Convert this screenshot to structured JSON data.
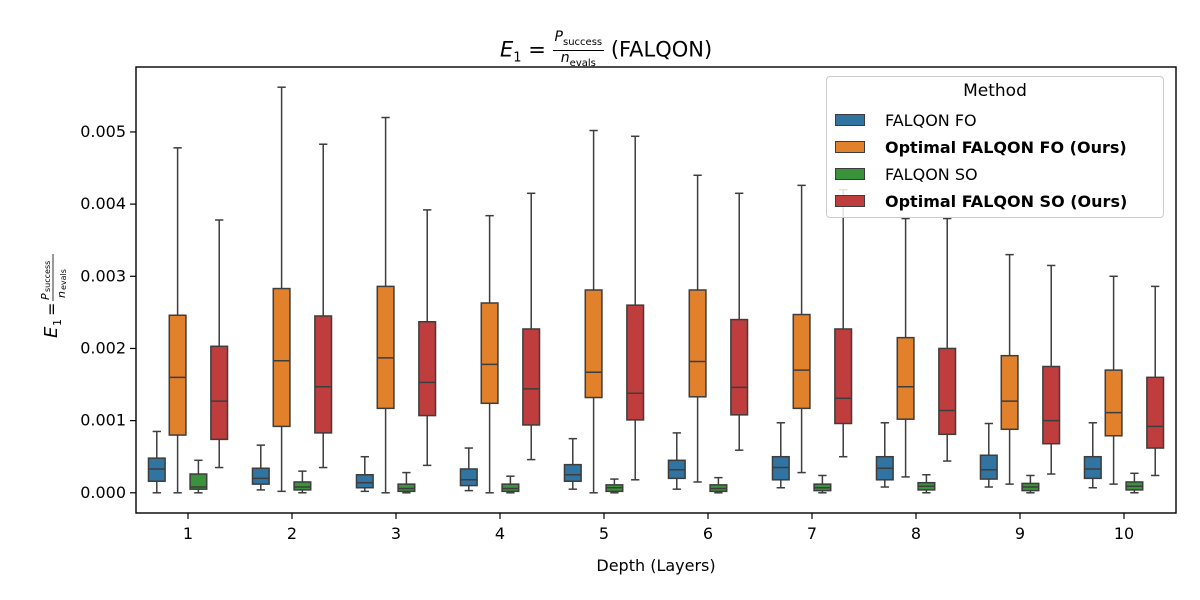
{
  "title": {
    "lhs": "E",
    "lhs_sub": "1",
    "eq": "=",
    "num_main": "P",
    "num_sub": "success",
    "den_main": "n",
    "den_sub": "evals",
    "suffix": "(FALQON)"
  },
  "ylabel": {
    "lhs": "E",
    "lhs_sub": "1",
    "eq": "=",
    "num_main": "P",
    "num_sub": "success",
    "den_main": "n",
    "den_sub": "evals"
  },
  "legend": {
    "title": "Method",
    "items": [
      {
        "label": "FALQON FO",
        "color": "#1f77b4",
        "bold": false
      },
      {
        "label": "Optimal FALQON FO (Ours)",
        "color": "#ff7f0e",
        "bold": true
      },
      {
        "label": "FALQON SO",
        "color": "#2ca02c",
        "bold": false
      },
      {
        "label": "Optimal FALQON SO (Ours)",
        "color": "#d62728",
        "bold": true
      }
    ]
  },
  "chart_data": {
    "type": "box",
    "xlabel": "Depth (Layers)",
    "categories": [
      "1",
      "2",
      "3",
      "4",
      "5",
      "6",
      "7",
      "8",
      "9",
      "10"
    ],
    "ylim": [
      -0.00028,
      0.0059
    ],
    "yticks": [
      0.0,
      0.001,
      0.002,
      0.003,
      0.004,
      0.005
    ],
    "ytick_labels": [
      "0.000",
      "0.001",
      "0.002",
      "0.003",
      "0.004",
      "0.005"
    ],
    "series": [
      {
        "name": "FALQON FO",
        "color": "#3274a1",
        "boxes": [
          {
            "min": 0.0,
            "q1": 0.00016,
            "median": 0.00033,
            "q3": 0.00048,
            "max": 0.00085
          },
          {
            "min": 4e-05,
            "q1": 0.00012,
            "median": 0.0002,
            "q3": 0.00034,
            "max": 0.00066
          },
          {
            "min": 2e-05,
            "q1": 7e-05,
            "median": 0.00014,
            "q3": 0.00025,
            "max": 0.0005
          },
          {
            "min": 3e-05,
            "q1": 0.0001,
            "median": 0.00018,
            "q3": 0.00033,
            "max": 0.00062
          },
          {
            "min": 5e-05,
            "q1": 0.00016,
            "median": 0.00025,
            "q3": 0.00039,
            "max": 0.00075
          },
          {
            "min": 5e-05,
            "q1": 0.0002,
            "median": 0.00032,
            "q3": 0.00045,
            "max": 0.00083
          },
          {
            "min": 7e-05,
            "q1": 0.00018,
            "median": 0.00035,
            "q3": 0.0005,
            "max": 0.00097
          },
          {
            "min": 8e-05,
            "q1": 0.00018,
            "median": 0.00034,
            "q3": 0.0005,
            "max": 0.00097
          },
          {
            "min": 8e-05,
            "q1": 0.00019,
            "median": 0.00032,
            "q3": 0.00052,
            "max": 0.00096
          },
          {
            "min": 7e-05,
            "q1": 0.0002,
            "median": 0.00033,
            "q3": 0.0005,
            "max": 0.00097
          }
        ]
      },
      {
        "name": "Optimal FALQON FO (Ours)",
        "color": "#e1812c",
        "boxes": [
          {
            "min": 0.0,
            "q1": 0.0008,
            "median": 0.0016,
            "q3": 0.00246,
            "max": 0.00478
          },
          {
            "min": 2e-05,
            "q1": 0.00092,
            "median": 0.00183,
            "q3": 0.00283,
            "max": 0.00562
          },
          {
            "min": 0.0,
            "q1": 0.00117,
            "median": 0.00187,
            "q3": 0.00286,
            "max": 0.0052
          },
          {
            "min": 0.0,
            "q1": 0.00124,
            "median": 0.00178,
            "q3": 0.00263,
            "max": 0.00384
          },
          {
            "min": 0.0,
            "q1": 0.00132,
            "median": 0.00167,
            "q3": 0.00281,
            "max": 0.00502
          },
          {
            "min": 0.00015,
            "q1": 0.00133,
            "median": 0.00182,
            "q3": 0.00281,
            "max": 0.0044
          },
          {
            "min": 0.00028,
            "q1": 0.00117,
            "median": 0.0017,
            "q3": 0.00247,
            "max": 0.00426
          },
          {
            "min": 0.00022,
            "q1": 0.00102,
            "median": 0.00147,
            "q3": 0.00215,
            "max": 0.0038
          },
          {
            "min": 0.00012,
            "q1": 0.00088,
            "median": 0.00127,
            "q3": 0.0019,
            "max": 0.0033
          },
          {
            "min": 0.00012,
            "q1": 0.00079,
            "median": 0.00111,
            "q3": 0.0017,
            "max": 0.003
          }
        ]
      },
      {
        "name": "FALQON SO",
        "color": "#3a923a",
        "boxes": [
          {
            "min": 0.0,
            "q1": 5e-05,
            "median": 8e-05,
            "q3": 0.00026,
            "max": 0.00045
          },
          {
            "min": 0.0,
            "q1": 4e-05,
            "median": 8e-05,
            "q3": 0.00015,
            "max": 0.0003
          },
          {
            "min": 0.0,
            "q1": 2e-05,
            "median": 6e-05,
            "q3": 0.00012,
            "max": 0.00028
          },
          {
            "min": 0.0,
            "q1": 2e-05,
            "median": 6e-05,
            "q3": 0.00012,
            "max": 0.00023
          },
          {
            "min": 0.0,
            "q1": 2e-05,
            "median": 7e-05,
            "q3": 0.00011,
            "max": 0.00019
          },
          {
            "min": 0.0,
            "q1": 2e-05,
            "median": 6e-05,
            "q3": 0.00011,
            "max": 0.00021
          },
          {
            "min": 0.0,
            "q1": 3e-05,
            "median": 7e-05,
            "q3": 0.00012,
            "max": 0.00024
          },
          {
            "min": 0.0,
            "q1": 4e-05,
            "median": 9e-05,
            "q3": 0.00014,
            "max": 0.00025
          },
          {
            "min": 0.0,
            "q1": 3e-05,
            "median": 8e-05,
            "q3": 0.00013,
            "max": 0.00024
          },
          {
            "min": 0.0,
            "q1": 4e-05,
            "median": 9e-05,
            "q3": 0.00015,
            "max": 0.00027
          }
        ]
      },
      {
        "name": "Optimal FALQON SO (Ours)",
        "color": "#c03d3e",
        "boxes": [
          {
            "min": 0.00035,
            "q1": 0.00074,
            "median": 0.00127,
            "q3": 0.00203,
            "max": 0.00378
          },
          {
            "min": 0.00035,
            "q1": 0.00083,
            "median": 0.00147,
            "q3": 0.00245,
            "max": 0.00483
          },
          {
            "min": 0.00038,
            "q1": 0.00107,
            "median": 0.00153,
            "q3": 0.00237,
            "max": 0.00392
          },
          {
            "min": 0.00046,
            "q1": 0.00094,
            "median": 0.00144,
            "q3": 0.00227,
            "max": 0.00415
          },
          {
            "min": 0.00018,
            "q1": 0.00101,
            "median": 0.00138,
            "q3": 0.0026,
            "max": 0.00494
          },
          {
            "min": 0.00059,
            "q1": 0.00108,
            "median": 0.00146,
            "q3": 0.0024,
            "max": 0.00415
          },
          {
            "min": 0.0005,
            "q1": 0.00096,
            "median": 0.00131,
            "q3": 0.00227,
            "max": 0.0042
          },
          {
            "min": 0.00044,
            "q1": 0.00081,
            "median": 0.00114,
            "q3": 0.002,
            "max": 0.0038
          },
          {
            "min": 0.00026,
            "q1": 0.00068,
            "median": 0.001,
            "q3": 0.00175,
            "max": 0.00315
          },
          {
            "min": 0.00024,
            "q1": 0.00062,
            "median": 0.00092,
            "q3": 0.0016,
            "max": 0.00286
          }
        ]
      }
    ]
  }
}
